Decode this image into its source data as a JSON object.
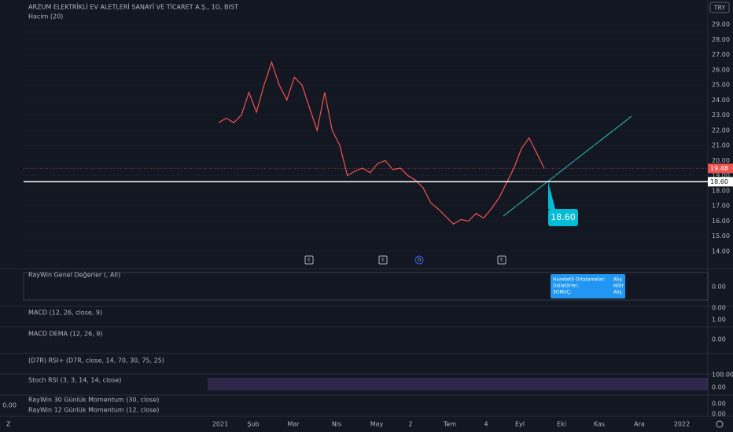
{
  "header": {
    "title": "ARZUM ELEKTRİKLİ EV ALETLERİ SANAYİ VE TİCARET A.Ş., 1G, BIST",
    "volume_label": "Hacim (20)",
    "currency": "TRY"
  },
  "chart_data": {
    "type": "line",
    "color": "#ef5350",
    "values": [
      22.5,
      22.8,
      22.5,
      23.0,
      24.5,
      23.2,
      25.0,
      26.5,
      25.0,
      24.0,
      25.5,
      25.0,
      23.5,
      22.0,
      24.5,
      22.0,
      21.0,
      19.0,
      19.3,
      19.5,
      19.2,
      19.8,
      20.0,
      19.4,
      19.5,
      19.0,
      18.7,
      18.2,
      17.2,
      16.8,
      16.3,
      15.8,
      16.1,
      16.0,
      16.5,
      16.2,
      16.8,
      17.5,
      18.5,
      19.5,
      20.8,
      21.5,
      20.5,
      19.48
    ],
    "ylim": [
      12.96,
      30.61
    ],
    "yticks": [
      {
        "value": 14,
        "label": "14.00"
      },
      {
        "value": 15,
        "label": "15.00"
      },
      {
        "value": 16,
        "label": "16.00"
      },
      {
        "value": 17,
        "label": "17.00"
      },
      {
        "value": 18,
        "label": "18.00"
      },
      {
        "value": 19,
        "label": "19.00"
      },
      {
        "value": 20,
        "label": "20.00"
      },
      {
        "value": 21,
        "label": "21.00"
      },
      {
        "value": 22,
        "label": "22.00"
      },
      {
        "value": 23,
        "label": "23.00"
      },
      {
        "value": 24,
        "label": "24.00"
      },
      {
        "value": 25,
        "label": "25.00"
      },
      {
        "value": 26,
        "label": "26.00"
      },
      {
        "value": 27,
        "label": "27.00"
      },
      {
        "value": 28,
        "label": "28.00"
      },
      {
        "value": 29,
        "label": "29.00"
      }
    ],
    "last_price": {
      "value": 19.48,
      "label": "19.48"
    },
    "level": {
      "value": 18.6,
      "label": "18.60"
    },
    "x_labels": [
      "2021",
      "Şub",
      "Mar",
      "Nis",
      "May",
      "2",
      "Tem",
      "4",
      "Eyl",
      "Eki",
      "Kas",
      "Ara",
      "2022"
    ],
    "events": [
      "E",
      "E",
      "D",
      "E"
    ]
  },
  "panes": [
    {
      "label": "RayWin Genel Değerler (, All)",
      "axis_labels": [
        "0.00"
      ]
    },
    {
      "label": "MACD (12, 26, close, 9)",
      "axis_labels": [
        "1.00",
        "0.00"
      ]
    },
    {
      "label": "MACD DEMA (12, 26, 9)",
      "axis_labels": [
        "0.00"
      ]
    },
    {
      "label": "(D7R) RSI+ (D7R, close, 14, 70, 30, 75, 25)",
      "axis_labels": []
    },
    {
      "label": "Stoch RSI (3, 3, 14, 14, close)",
      "axis_labels": [
        "100.00",
        "0.00"
      ]
    },
    {
      "label": "RayWin 30 Günlük Momentum (30, close)",
      "axis_labels": [
        "0.00",
        "0.00"
      ]
    },
    {
      "label": "RayWin 12 Günlük Momentum (12, close)",
      "axis_labels": []
    }
  ],
  "momentum_left_label": "0.00",
  "tooltip": {
    "lines": [
      [
        "Hareketli Ortalamalar:",
        "Alış"
      ],
      [
        "Osilatörler:",
        "Nötr"
      ],
      [
        "SONUÇ:",
        "Alış"
      ]
    ]
  },
  "footer": {
    "left": "Z"
  }
}
